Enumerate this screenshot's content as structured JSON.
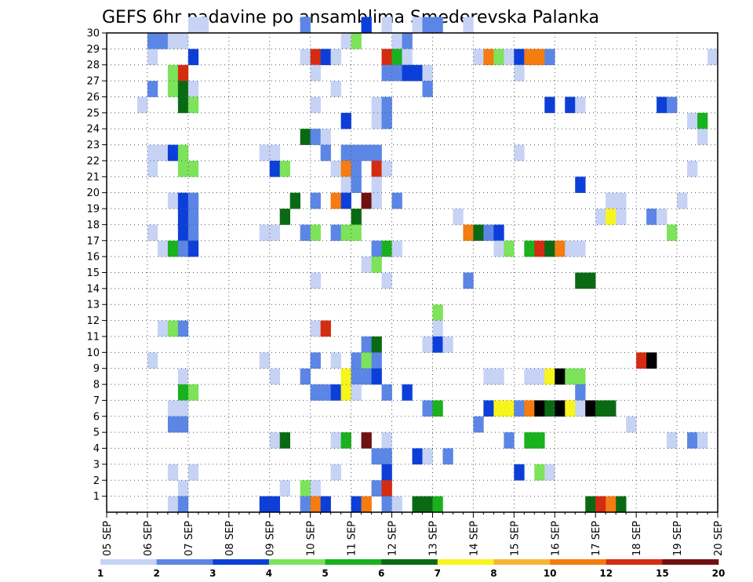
{
  "chart_data": {
    "type": "heatmap",
    "title": "GEFS 6hr padavine po ansamblima Smederevska Palanka",
    "xlabel": "",
    "ylabel": "",
    "x_tick_labels": [
      "05 SEP",
      "06 SEP",
      "07 SEP",
      "08 SEP",
      "09 SEP",
      "10 SEP",
      "11 SEP",
      "12 SEP",
      "13 SEP",
      "14 SEP",
      "15 SEP",
      "16 SEP",
      "17 SEP",
      "18 SEP",
      "19 SEP",
      "20 SEP"
    ],
    "y_tick_labels": [
      "1",
      "2",
      "3",
      "4",
      "5",
      "6",
      "7",
      "8",
      "9",
      "10",
      "11",
      "12",
      "13",
      "14",
      "15",
      "16",
      "17",
      "18",
      "19",
      "20",
      "21",
      "22",
      "23",
      "24",
      "25",
      "26",
      "27",
      "28",
      "29",
      "30"
    ],
    "x_unit": "6-hour step from 05 SEP 00Z",
    "xlim": [
      0,
      60
    ],
    "ylim": [
      0,
      30
    ],
    "grid": true,
    "colorbar": {
      "levels": [
        "1",
        "2",
        "3",
        "4",
        "5",
        "6",
        "7",
        "8",
        "10",
        "12",
        "15",
        "20"
      ],
      "colors": [
        "#c6d3f5",
        "#5b86e6",
        "#0c3fd9",
        "#7ce35a",
        "#19b11e",
        "#0a6a14",
        "#f7f51c",
        "#f9b437",
        "#f47c10",
        "#d52b10",
        "#701010"
      ]
    },
    "cells": [
      [
        8,
        30,
        1
      ],
      [
        9,
        30,
        1
      ],
      [
        19,
        30,
        2
      ],
      [
        25,
        30,
        3
      ],
      [
        27,
        30,
        1
      ],
      [
        30,
        30,
        1
      ],
      [
        31,
        30,
        2
      ],
      [
        32,
        30,
        2
      ],
      [
        35,
        30,
        1
      ],
      [
        4,
        29,
        2
      ],
      [
        5,
        29,
        2
      ],
      [
        6,
        29,
        1
      ],
      [
        7,
        29,
        1
      ],
      [
        23,
        29,
        1
      ],
      [
        24,
        29,
        4
      ],
      [
        28,
        29,
        1
      ],
      [
        29,
        29,
        2
      ],
      [
        4,
        28,
        1
      ],
      [
        8,
        28,
        3
      ],
      [
        19,
        28,
        1
      ],
      [
        20,
        28,
        10
      ],
      [
        21,
        28,
        3
      ],
      [
        22,
        28,
        1
      ],
      [
        27,
        28,
        10
      ],
      [
        28,
        28,
        5
      ],
      [
        29,
        28,
        1
      ],
      [
        36,
        28,
        1
      ],
      [
        37,
        28,
        9
      ],
      [
        38,
        28,
        4
      ],
      [
        39,
        28,
        1
      ],
      [
        40,
        28,
        3
      ],
      [
        41,
        28,
        9
      ],
      [
        42,
        28,
        9
      ],
      [
        43,
        28,
        2
      ],
      [
        59,
        28,
        1
      ],
      [
        6,
        27,
        4
      ],
      [
        7,
        27,
        10
      ],
      [
        20,
        27,
        1
      ],
      [
        27,
        27,
        2
      ],
      [
        28,
        27,
        2
      ],
      [
        29,
        27,
        3
      ],
      [
        30,
        27,
        3
      ],
      [
        31,
        27,
        1
      ],
      [
        40,
        27,
        1
      ],
      [
        4,
        26,
        2
      ],
      [
        6,
        26,
        4
      ],
      [
        7,
        26,
        6
      ],
      [
        8,
        26,
        1
      ],
      [
        22,
        26,
        1
      ],
      [
        31,
        26,
        2
      ],
      [
        3,
        25,
        1
      ],
      [
        7,
        25,
        6
      ],
      [
        8,
        25,
        4
      ],
      [
        20,
        25,
        1
      ],
      [
        26,
        25,
        1
      ],
      [
        27,
        25,
        2
      ],
      [
        43,
        25,
        3
      ],
      [
        45,
        25,
        3
      ],
      [
        46,
        25,
        1
      ],
      [
        54,
        25,
        3
      ],
      [
        55,
        25,
        2
      ],
      [
        23,
        24,
        3
      ],
      [
        26,
        24,
        1
      ],
      [
        27,
        24,
        2
      ],
      [
        57,
        24,
        1
      ],
      [
        58,
        24,
        5
      ],
      [
        19,
        23,
        6
      ],
      [
        20,
        23,
        2
      ],
      [
        21,
        23,
        1
      ],
      [
        58,
        23,
        1
      ],
      [
        4,
        22,
        1
      ],
      [
        5,
        22,
        1
      ],
      [
        6,
        22,
        3
      ],
      [
        7,
        22,
        4
      ],
      [
        15,
        22,
        1
      ],
      [
        16,
        22,
        1
      ],
      [
        21,
        22,
        2
      ],
      [
        23,
        22,
        2
      ],
      [
        24,
        22,
        2
      ],
      [
        25,
        22,
        2
      ],
      [
        26,
        22,
        2
      ],
      [
        40,
        22,
        1
      ],
      [
        4,
        21,
        1
      ],
      [
        7,
        21,
        4
      ],
      [
        8,
        21,
        4
      ],
      [
        16,
        21,
        3
      ],
      [
        17,
        21,
        4
      ],
      [
        22,
        21,
        1
      ],
      [
        23,
        21,
        9
      ],
      [
        24,
        21,
        2
      ],
      [
        26,
        21,
        10
      ],
      [
        27,
        21,
        1
      ],
      [
        57,
        21,
        1
      ],
      [
        23,
        20,
        1
      ],
      [
        24,
        20,
        2
      ],
      [
        26,
        20,
        1
      ],
      [
        46,
        20,
        3
      ],
      [
        6,
        19,
        1
      ],
      [
        7,
        19,
        3
      ],
      [
        8,
        19,
        2
      ],
      [
        18,
        19,
        6
      ],
      [
        20,
        19,
        2
      ],
      [
        22,
        19,
        9
      ],
      [
        23,
        19,
        3
      ],
      [
        25,
        19,
        11
      ],
      [
        26,
        19,
        1
      ],
      [
        28,
        19,
        2
      ],
      [
        49,
        19,
        1
      ],
      [
        50,
        19,
        1
      ],
      [
        56,
        19,
        1
      ],
      [
        7,
        18,
        3
      ],
      [
        8,
        18,
        2
      ],
      [
        17,
        18,
        6
      ],
      [
        24,
        18,
        6
      ],
      [
        34,
        18,
        1
      ],
      [
        48,
        18,
        1
      ],
      [
        49,
        18,
        7
      ],
      [
        50,
        18,
        1
      ],
      [
        53,
        18,
        2
      ],
      [
        54,
        18,
        1
      ],
      [
        4,
        17,
        1
      ],
      [
        7,
        17,
        3
      ],
      [
        8,
        17,
        2
      ],
      [
        15,
        17,
        1
      ],
      [
        16,
        17,
        1
      ],
      [
        19,
        17,
        2
      ],
      [
        20,
        17,
        4
      ],
      [
        22,
        17,
        2
      ],
      [
        23,
        17,
        4
      ],
      [
        24,
        17,
        4
      ],
      [
        35,
        17,
        9
      ],
      [
        36,
        17,
        6
      ],
      [
        37,
        17,
        2
      ],
      [
        38,
        17,
        3
      ],
      [
        55,
        17,
        4
      ],
      [
        5,
        16,
        1
      ],
      [
        6,
        16,
        5
      ],
      [
        7,
        16,
        2
      ],
      [
        8,
        16,
        3
      ],
      [
        26,
        16,
        2
      ],
      [
        27,
        16,
        5
      ],
      [
        28,
        16,
        1
      ],
      [
        38,
        16,
        1
      ],
      [
        39,
        16,
        4
      ],
      [
        41,
        16,
        5
      ],
      [
        42,
        16,
        10
      ],
      [
        43,
        16,
        6
      ],
      [
        44,
        16,
        9
      ],
      [
        45,
        16,
        1
      ],
      [
        46,
        16,
        1
      ],
      [
        25,
        15,
        1
      ],
      [
        26,
        15,
        4
      ],
      [
        20,
        14,
        1
      ],
      [
        27,
        14,
        1
      ],
      [
        35,
        14,
        2
      ],
      [
        46,
        14,
        6
      ],
      [
        47,
        14,
        6
      ],
      [
        32,
        12,
        4
      ],
      [
        5,
        11,
        1
      ],
      [
        6,
        11,
        4
      ],
      [
        7,
        11,
        2
      ],
      [
        20,
        11,
        1
      ],
      [
        21,
        11,
        10
      ],
      [
        32,
        11,
        1
      ],
      [
        25,
        10,
        2
      ],
      [
        26,
        10,
        6
      ],
      [
        31,
        10,
        1
      ],
      [
        32,
        10,
        3
      ],
      [
        33,
        10,
        1
      ],
      [
        4,
        9,
        1
      ],
      [
        15,
        9,
        1
      ],
      [
        20,
        9,
        2
      ],
      [
        22,
        9,
        1
      ],
      [
        24,
        9,
        2
      ],
      [
        25,
        9,
        4
      ],
      [
        26,
        9,
        2
      ],
      [
        52,
        9,
        10
      ],
      [
        53,
        9,
        15
      ],
      [
        7,
        8,
        1
      ],
      [
        16,
        8,
        1
      ],
      [
        19,
        8,
        2
      ],
      [
        23,
        8,
        7
      ],
      [
        24,
        8,
        2
      ],
      [
        25,
        8,
        2
      ],
      [
        26,
        8,
        3
      ],
      [
        37,
        8,
        1
      ],
      [
        38,
        8,
        1
      ],
      [
        41,
        8,
        1
      ],
      [
        42,
        8,
        1
      ],
      [
        43,
        8,
        7
      ],
      [
        44,
        8,
        15
      ],
      [
        45,
        8,
        4
      ],
      [
        46,
        8,
        4
      ],
      [
        7,
        7,
        5
      ],
      [
        8,
        7,
        4
      ],
      [
        20,
        7,
        2
      ],
      [
        21,
        7,
        2
      ],
      [
        22,
        7,
        3
      ],
      [
        23,
        7,
        7
      ],
      [
        24,
        7,
        1
      ],
      [
        27,
        7,
        2
      ],
      [
        29,
        7,
        3
      ],
      [
        46,
        7,
        2
      ],
      [
        6,
        6,
        1
      ],
      [
        7,
        6,
        1
      ],
      [
        31,
        6,
        2
      ],
      [
        32,
        6,
        5
      ],
      [
        37,
        6,
        3
      ],
      [
        38,
        6,
        7
      ],
      [
        39,
        6,
        7
      ],
      [
        40,
        6,
        2
      ],
      [
        41,
        6,
        9
      ],
      [
        42,
        6,
        12
      ],
      [
        43,
        6,
        6
      ],
      [
        44,
        6,
        15
      ],
      [
        45,
        6,
        7
      ],
      [
        46,
        6,
        1
      ],
      [
        47,
        6,
        12
      ],
      [
        48,
        6,
        6
      ],
      [
        49,
        6,
        6
      ],
      [
        6,
        5,
        2
      ],
      [
        7,
        5,
        2
      ],
      [
        36,
        5,
        2
      ],
      [
        51,
        5,
        1
      ],
      [
        16,
        4,
        1
      ],
      [
        17,
        4,
        6
      ],
      [
        22,
        4,
        1
      ],
      [
        23,
        4,
        5
      ],
      [
        25,
        4,
        11
      ],
      [
        27,
        4,
        1
      ],
      [
        39,
        4,
        2
      ],
      [
        41,
        4,
        5
      ],
      [
        42,
        4,
        5
      ],
      [
        55,
        4,
        1
      ],
      [
        57,
        4,
        2
      ],
      [
        58,
        4,
        1
      ],
      [
        26,
        3,
        2
      ],
      [
        27,
        3,
        2
      ],
      [
        30,
        3,
        3
      ],
      [
        31,
        3,
        1
      ],
      [
        33,
        3,
        2
      ],
      [
        6,
        2,
        1
      ],
      [
        8,
        2,
        1
      ],
      [
        22,
        2,
        1
      ],
      [
        27,
        2,
        3
      ],
      [
        40,
        2,
        3
      ],
      [
        42,
        2,
        4
      ],
      [
        43,
        2,
        1
      ],
      [
        7,
        1,
        1
      ],
      [
        17,
        1,
        1
      ],
      [
        19,
        1,
        4
      ],
      [
        20,
        1,
        1
      ],
      [
        26,
        1,
        2
      ],
      [
        27,
        1,
        10
      ],
      [
        6,
        0,
        1
      ],
      [
        7,
        0,
        2
      ],
      [
        15,
        0,
        3
      ],
      [
        16,
        0,
        3
      ],
      [
        19,
        0,
        2
      ],
      [
        20,
        0,
        9
      ],
      [
        21,
        0,
        3
      ],
      [
        24,
        0,
        3
      ],
      [
        25,
        0,
        9
      ],
      [
        27,
        0,
        2
      ],
      [
        28,
        0,
        1
      ],
      [
        30,
        0,
        6
      ],
      [
        31,
        0,
        6
      ],
      [
        32,
        0,
        5
      ],
      [
        47,
        0,
        6
      ],
      [
        48,
        0,
        10
      ],
      [
        49,
        0,
        9
      ],
      [
        50,
        0,
        6
      ]
    ]
  }
}
